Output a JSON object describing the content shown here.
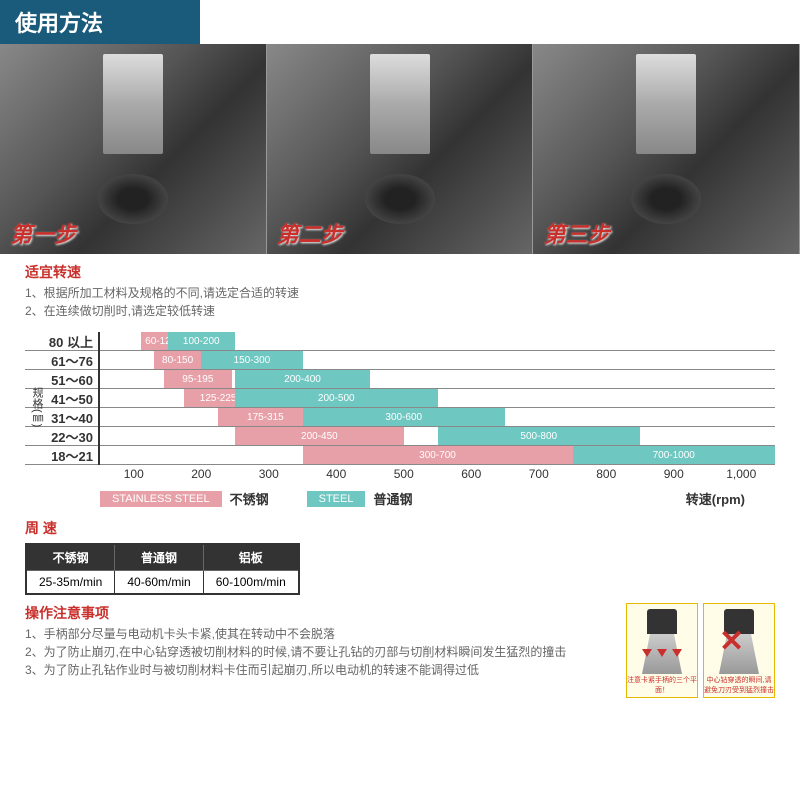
{
  "header": {
    "title": "使用方法"
  },
  "steps": [
    {
      "label": "第一步"
    },
    {
      "label": "第二步"
    },
    {
      "label": "第三步"
    }
  ],
  "speed_section": {
    "title": "适宜转速",
    "lines": [
      "1、根据所加工材料及规格的不同,请选定合适的转速",
      "2、在连续做切削时,请选定较低转速"
    ]
  },
  "chart": {
    "y_axis_title": "规格(㎜)",
    "x_axis_title": "转速(rpm)",
    "colors": {
      "stainless": "#e8a0a8",
      "steel": "#6fc7c1"
    },
    "rows": [
      {
        "label": "80 以上",
        "pink": {
          "start": 60,
          "end": 120,
          "text": "60-120"
        },
        "teal": {
          "start": 100,
          "end": 200,
          "text": "100-200"
        }
      },
      {
        "label": "61～76",
        "pink": {
          "start": 80,
          "end": 150,
          "text": "80-150"
        },
        "teal": {
          "start": 150,
          "end": 300,
          "text": "150-300"
        }
      },
      {
        "label": "51～60",
        "pink": {
          "start": 95,
          "end": 195,
          "text": "95-195"
        },
        "teal": {
          "start": 200,
          "end": 400,
          "text": "200-400"
        }
      },
      {
        "label": "41～50",
        "pink": {
          "start": 125,
          "end": 225,
          "text": "125-225"
        },
        "teal": {
          "start": 200,
          "end": 500,
          "text": "200-500"
        }
      },
      {
        "label": "31～40",
        "pink": {
          "start": 175,
          "end": 315,
          "text": "175-315"
        },
        "teal": {
          "start": 300,
          "end": 600,
          "text": "300-600"
        }
      },
      {
        "label": "22～30",
        "pink": {
          "start": 200,
          "end": 450,
          "text": "200-450"
        },
        "teal": {
          "start": 500,
          "end": 800,
          "text": "500-800"
        }
      },
      {
        "label": "18～21",
        "pink": {
          "start": 300,
          "end": 700,
          "text": "300-700"
        },
        "teal": {
          "start": 700,
          "end": 1000,
          "text": "700-1000"
        }
      }
    ],
    "x_ticks": [
      "100",
      "200",
      "300",
      "400",
      "500",
      "600",
      "700",
      "800",
      "900",
      "1,000"
    ],
    "x_min": 0,
    "x_max": 1000,
    "legend": {
      "stainless_box": "STAINLESS STEEL",
      "stainless_label": "不锈钢",
      "steel_box": "STEEL",
      "steel_label": "普通钢",
      "rpm": "转速(rpm)"
    }
  },
  "peripheral": {
    "title": "周 速",
    "headers": [
      "不锈钢",
      "普通钢",
      "铝板"
    ],
    "values": [
      "25-35m/min",
      "40-60m/min",
      "60-100m/min"
    ]
  },
  "notes": {
    "title": "操作注意事项",
    "lines": [
      "1、手柄部分尽量与电动机卡头卡紧,使其在转动中不会脱落",
      "2、为了防止崩刃,在中心钻穿透被切削材料的时候,请不要让孔钻的刃部与切削材料瞬间发生猛烈的撞击",
      "3、为了防止孔钻作业时与被切削材料卡住而引起崩刃,所以电动机的转速不能调得过低"
    ]
  },
  "diagrams": [
    {
      "caption": "注意卡紧手柄的三个平面！"
    },
    {
      "caption": "中心钻穿透的瞬间,请避免刀刃受到猛烈撞击"
    }
  ]
}
